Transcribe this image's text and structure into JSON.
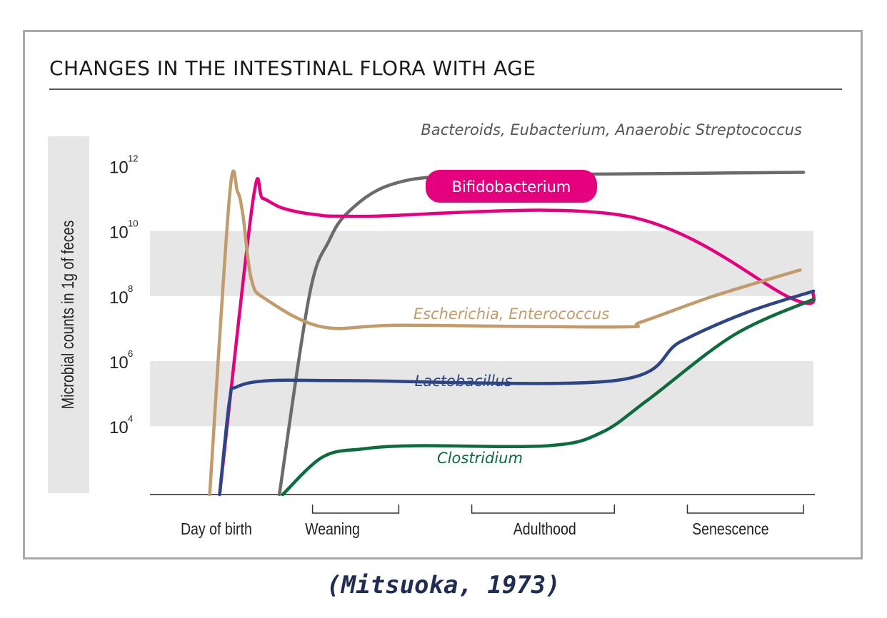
{
  "chart_data": {
    "type": "line",
    "title": "CHANGES IN THE INTESTINAL FLORA WITH AGE",
    "ylabel": "Microbial counts in 1g of feces",
    "yscale": "log",
    "yticks": [
      {
        "base": "10",
        "exp": "12",
        "value": 12
      },
      {
        "base": "10",
        "exp": "10",
        "value": 10
      },
      {
        "base": "10",
        "exp": "8",
        "value": 8
      },
      {
        "base": "10",
        "exp": "6",
        "value": 6
      },
      {
        "base": "10",
        "exp": "4",
        "value": 4
      }
    ],
    "ylim": [
      1.9,
      12.6
    ],
    "xlim": [
      0,
      100
    ],
    "stages": [
      {
        "label": "Day of birth",
        "x": 10,
        "bracket": false
      },
      {
        "label": "Weaning",
        "x": 27.5,
        "x0": 24.5,
        "x1": 37.5,
        "bracket": true
      },
      {
        "label": "Adulthood",
        "x": 59.5,
        "x0": 48.5,
        "x1": 70,
        "bracket": true
      },
      {
        "label": "Senescence",
        "x": 87.5,
        "x0": 81,
        "x1": 98.5,
        "bracket": true
      }
    ],
    "bands": [
      {
        "from": 8,
        "to": 10
      },
      {
        "from": 4,
        "to": 6
      }
    ],
    "grid": false,
    "series": [
      {
        "name": "Bacteroids, Eubacterium, Anaerobic Streptococcus",
        "color": "#6b6b6b",
        "points": [
          [
            19.5,
            1.9
          ],
          [
            24,
            8
          ],
          [
            27,
            9.7
          ],
          [
            30,
            10.6
          ],
          [
            36,
            11.4
          ],
          [
            46,
            11.7
          ],
          [
            70,
            11.75
          ],
          [
            98.5,
            11.8
          ]
        ]
      },
      {
        "name": "Bifidobacterium",
        "color": "#e5007e",
        "points": [
          [
            10.5,
            1.9
          ],
          [
            15.5,
            10.9
          ],
          [
            17,
            11
          ],
          [
            20,
            10.7
          ],
          [
            25,
            10.5
          ],
          [
            32,
            10.45
          ],
          [
            72,
            10.45
          ],
          [
            97,
            7.9
          ],
          [
            100,
            8.15
          ]
        ]
      },
      {
        "name": "Escherichia, Enterococcus",
        "color": "#c29b6c",
        "points": [
          [
            9,
            1.9
          ],
          [
            12,
            11.1
          ],
          [
            13.2,
            11.2
          ],
          [
            14,
            10.5
          ],
          [
            15.3,
            8.5
          ],
          [
            17.5,
            7.9
          ],
          [
            26,
            7.05
          ],
          [
            38,
            7.1
          ],
          [
            70.5,
            7.05
          ],
          [
            74,
            7.2
          ],
          [
            85,
            8
          ],
          [
            98,
            8.8
          ]
        ]
      },
      {
        "name": "Lactobacillus",
        "color": "#2d4584",
        "points": [
          [
            10.5,
            1.9
          ],
          [
            12,
            4.8
          ],
          [
            13,
            5.2
          ],
          [
            18,
            5.4
          ],
          [
            30,
            5.4
          ],
          [
            70,
            5.4
          ],
          [
            80,
            6.6
          ],
          [
            90,
            7.5
          ],
          [
            100,
            8.15
          ]
        ]
      },
      {
        "name": "Clostridium",
        "color": "#0d6b3e",
        "points": [
          [
            20,
            1.9
          ],
          [
            26,
            3.05
          ],
          [
            32,
            3.3
          ],
          [
            40,
            3.4
          ],
          [
            60,
            3.4
          ],
          [
            68,
            3.8
          ],
          [
            75,
            4.8
          ],
          [
            88,
            6.8
          ],
          [
            100,
            7.9
          ]
        ]
      }
    ],
    "labels": [
      {
        "series": 0,
        "text": "Bacteroids, Eubacterium, Anaerobic Streptococcus",
        "style": "italic"
      },
      {
        "series": 1,
        "text": "Bifidobacterium",
        "style": "pill"
      },
      {
        "series": 2,
        "text": "Escherichia, Enterococcus",
        "style": "italic"
      },
      {
        "series": 3,
        "text": "Lactobacillus",
        "style": "italic"
      },
      {
        "series": 4,
        "text": "Clostridium",
        "style": "italic"
      }
    ]
  },
  "citation": "(Mitsuoka, 1973)"
}
